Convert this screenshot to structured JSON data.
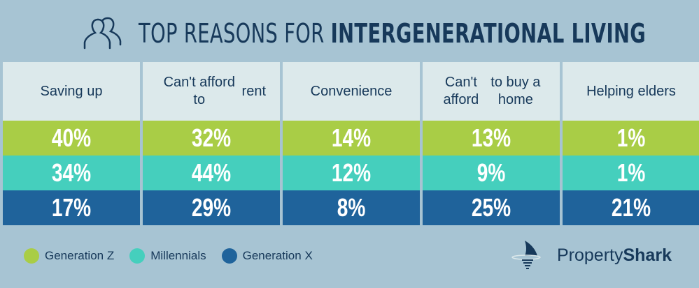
{
  "title": {
    "light": "TOP REASONS FOR ",
    "bold": "INTERGENERATIONAL LIVING",
    "icon": "people-icon"
  },
  "colors": {
    "gen_z": "#a9cd46",
    "millennials": "#45cfbd",
    "gen_x": "#1f639b",
    "header": "#dce9eb",
    "background": "#a7c4d3",
    "text": "#17395a"
  },
  "chart_data": {
    "type": "table",
    "title": "TOP REASONS FOR INTERGENERATIONAL LIVING",
    "categories": [
      "Saving up",
      "Can't afford to rent",
      "Convenience",
      "Can't afford to buy a home",
      "Helping elders"
    ],
    "header_lines": [
      [
        "Saving up"
      ],
      [
        "Can't afford to",
        "rent"
      ],
      [
        "Convenience"
      ],
      [
        "Can't afford",
        "to buy a home"
      ],
      [
        "Helping elders"
      ]
    ],
    "series": [
      {
        "name": "Generation Z",
        "values": [
          40,
          32,
          14,
          13,
          1
        ],
        "labels": [
          "40%",
          "32%",
          "14%",
          "13%",
          "1%"
        ]
      },
      {
        "name": "Millennials",
        "values": [
          34,
          44,
          12,
          9,
          1
        ],
        "labels": [
          "34%",
          "44%",
          "12%",
          "9%",
          "1%"
        ]
      },
      {
        "name": "Generation X",
        "values": [
          17,
          29,
          8,
          25,
          21
        ],
        "labels": [
          "17%",
          "29%",
          "8%",
          "25%",
          "21%"
        ]
      }
    ],
    "unit": "%",
    "legend_placement": "bottom-left"
  },
  "legend": [
    "Generation Z",
    "Millennials",
    "Generation X"
  ],
  "logo": {
    "light": "Property",
    "bold": "Shark"
  }
}
